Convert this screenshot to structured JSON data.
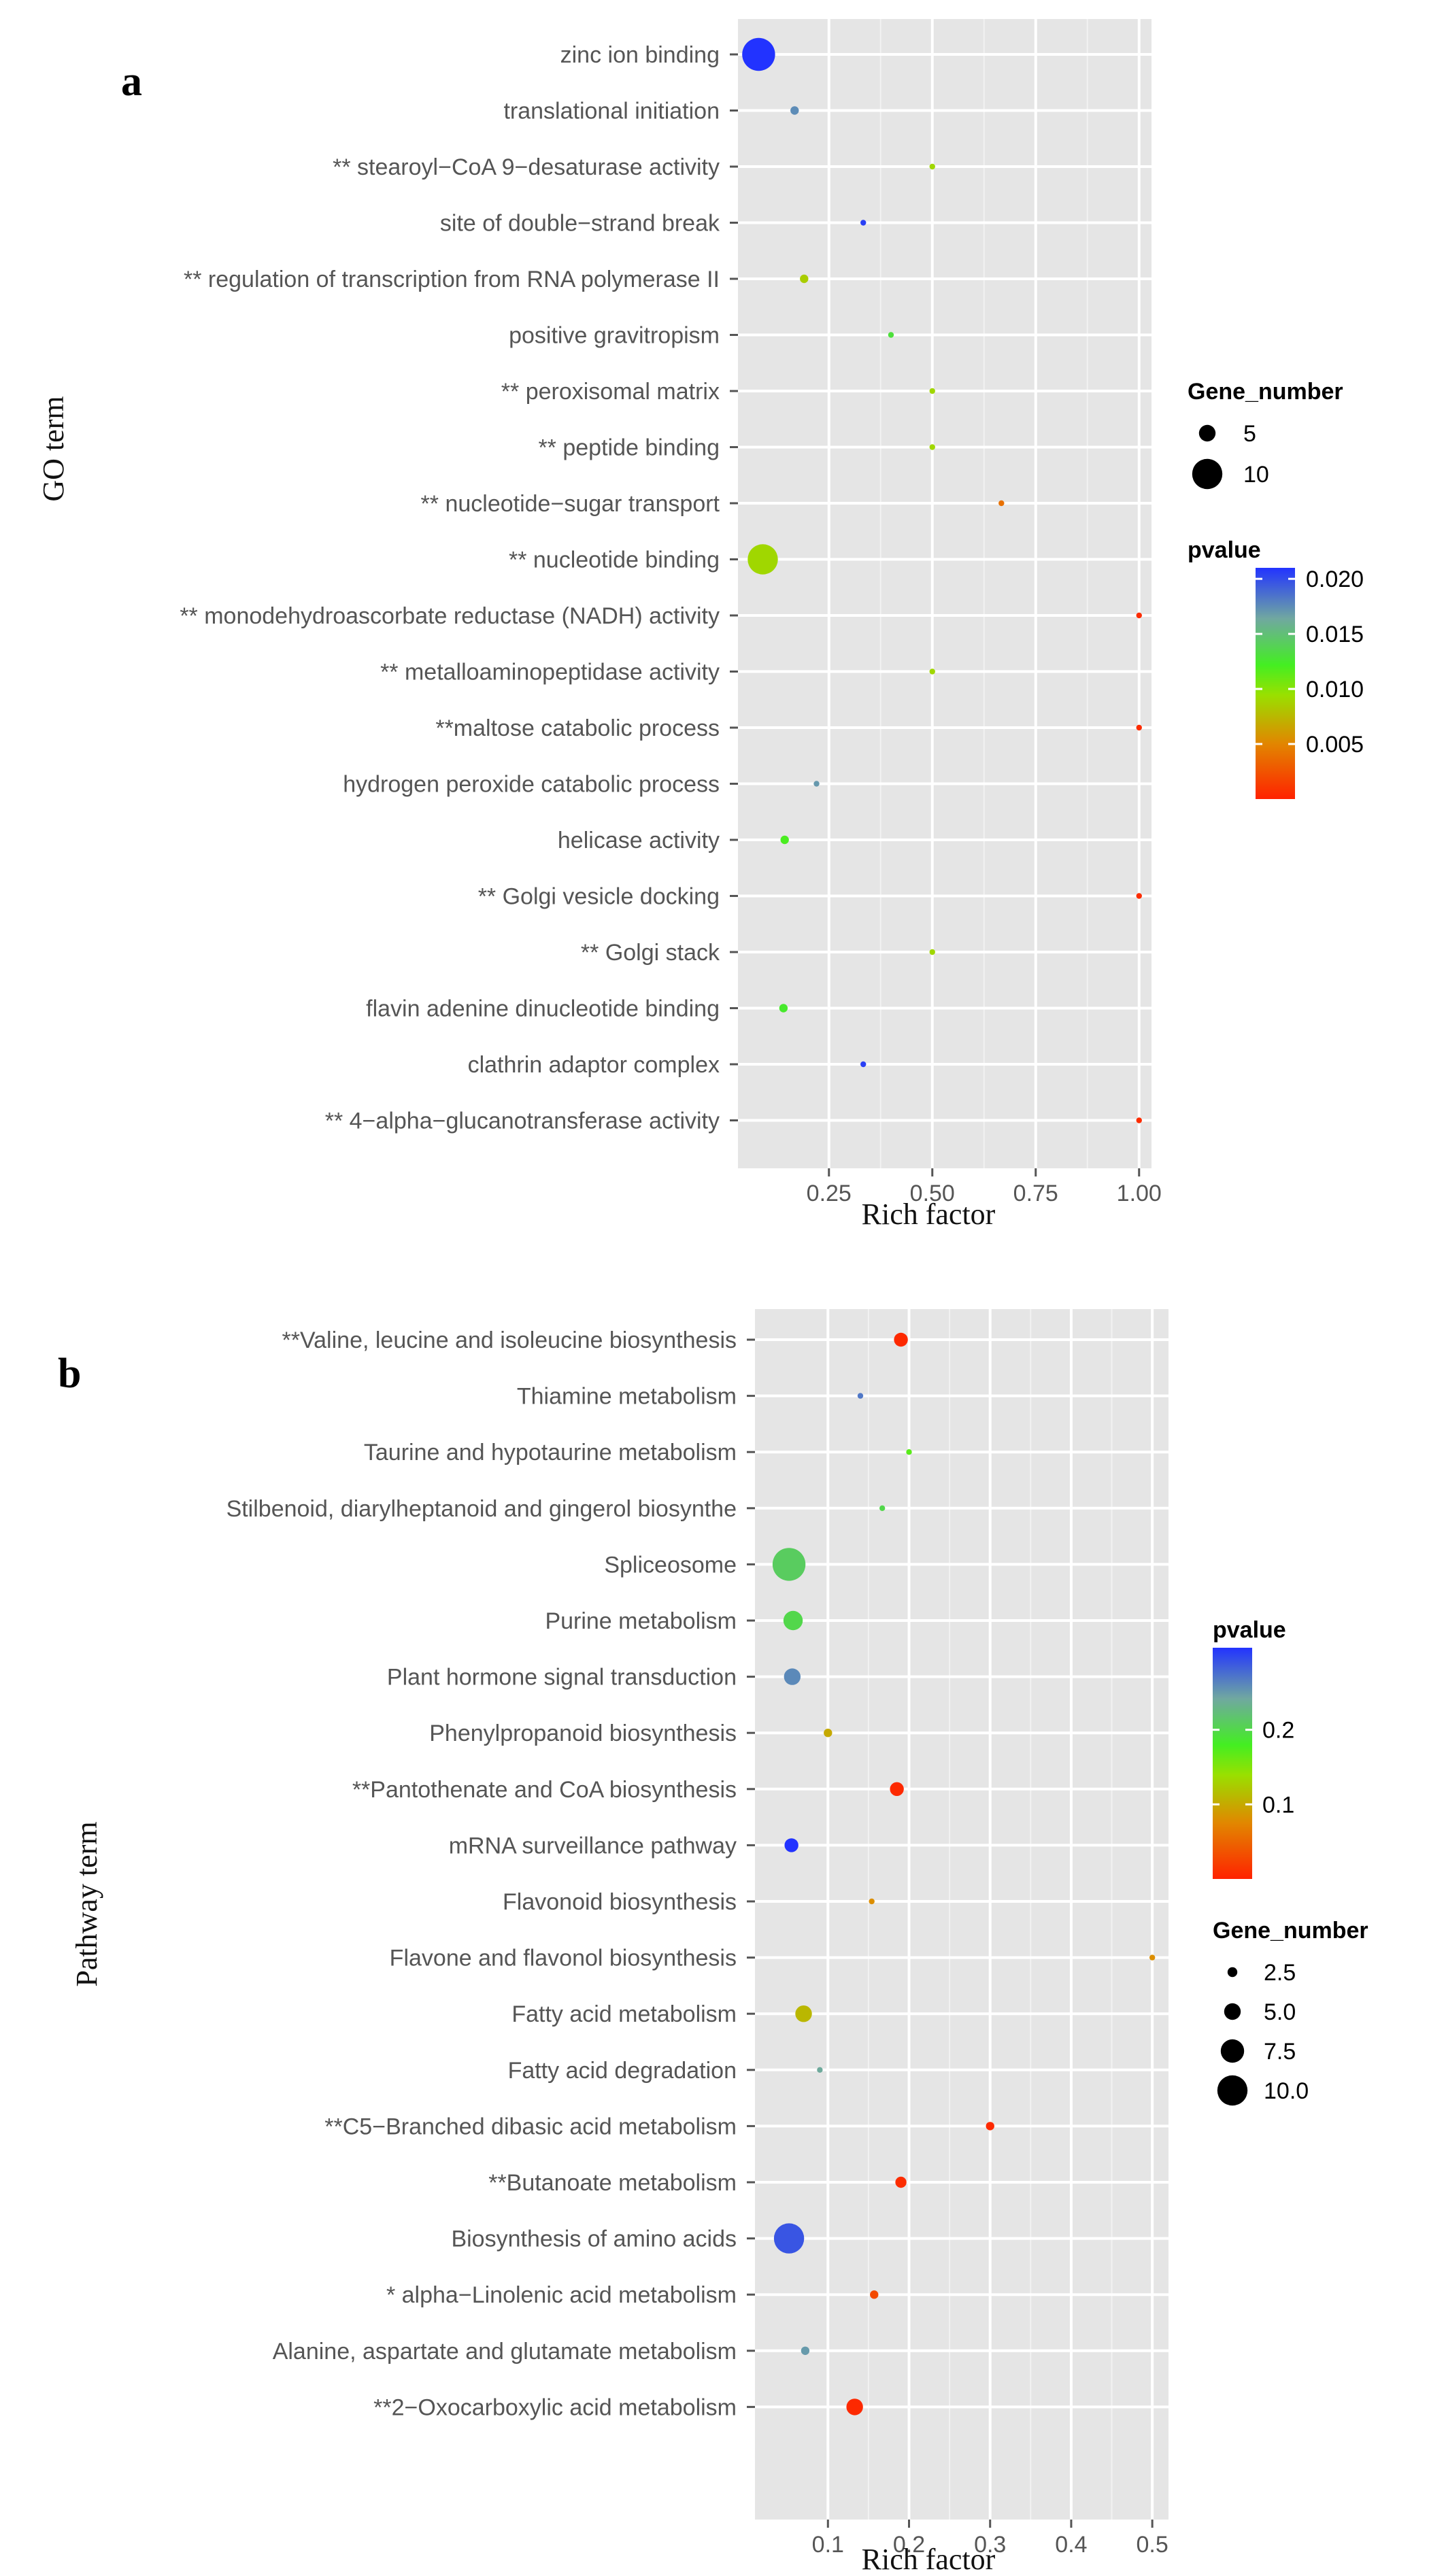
{
  "chart_data": [
    {
      "type": "scatter",
      "panel_label": "a",
      "xlabel": "Rich factor",
      "ylabel": "GO term",
      "xlim": [
        0.03,
        1.03
      ],
      "xticks": [
        0.25,
        0.5,
        0.75,
        1.0
      ],
      "xtick_labels": [
        "0.25",
        "0.50",
        "0.75",
        "1.00"
      ],
      "grid": true,
      "size_legend": {
        "title": "Gene_number",
        "entries": [
          {
            "label": "5",
            "value": 5
          },
          {
            "label": "10",
            "value": 10
          }
        ]
      },
      "color_legend": {
        "title": "pvalue",
        "min": 0.0,
        "max": 0.021,
        "ticks": [
          0.02,
          0.015,
          0.01,
          0.005
        ],
        "tick_labels": [
          "0.020",
          "0.015",
          "0.010",
          "0.005"
        ]
      },
      "points": [
        {
          "term": "zinc ion binding",
          "rich_factor": 0.08,
          "gene_number": 11,
          "pvalue": 0.021
        },
        {
          "term": "translational initiation",
          "rich_factor": 0.167,
          "gene_number": 2,
          "pvalue": 0.0175
        },
        {
          "term": "** stearoyl−CoA 9−desaturase activity",
          "rich_factor": 0.5,
          "gene_number": 1,
          "pvalue": 0.009
        },
        {
          "term": "site of double−strand break",
          "rich_factor": 0.333,
          "gene_number": 1,
          "pvalue": 0.0205
        },
        {
          "term": "** regulation of transcription from RNA polymerase II",
          "rich_factor": 0.19,
          "gene_number": 2,
          "pvalue": 0.0085
        },
        {
          "term": "positive gravitropism",
          "rich_factor": 0.4,
          "gene_number": 1,
          "pvalue": 0.013
        },
        {
          "term": "** peroxisomal matrix",
          "rich_factor": 0.5,
          "gene_number": 1,
          "pvalue": 0.009
        },
        {
          "term": "** peptide binding",
          "rich_factor": 0.5,
          "gene_number": 1,
          "pvalue": 0.009
        },
        {
          "term": "** nucleotide−sugar transport",
          "rich_factor": 0.667,
          "gene_number": 1,
          "pvalue": 0.004
        },
        {
          "term": "** nucleotide binding",
          "rich_factor": 0.09,
          "gene_number": 10,
          "pvalue": 0.009
        },
        {
          "term": "** monodehydroascorbate reductase (NADH) activity",
          "rich_factor": 1.0,
          "gene_number": 1,
          "pvalue": 0.0005
        },
        {
          "term": "** metalloaminopeptidase activity",
          "rich_factor": 0.5,
          "gene_number": 1,
          "pvalue": 0.009
        },
        {
          "term": "**maltose catabolic process",
          "rich_factor": 1.0,
          "gene_number": 1,
          "pvalue": 0.0005
        },
        {
          "term": "hydrogen peroxide catabolic process",
          "rich_factor": 0.22,
          "gene_number": 1,
          "pvalue": 0.017
        },
        {
          "term": "helicase activity",
          "rich_factor": 0.143,
          "gene_number": 2,
          "pvalue": 0.012
        },
        {
          "term": "** Golgi vesicle docking",
          "rich_factor": 1.0,
          "gene_number": 1,
          "pvalue": 0.0005
        },
        {
          "term": "** Golgi stack",
          "rich_factor": 0.5,
          "gene_number": 1,
          "pvalue": 0.009
        },
        {
          "term": "flavin adenine dinucleotide binding",
          "rich_factor": 0.14,
          "gene_number": 2,
          "pvalue": 0.0125
        },
        {
          "term": "clathrin adaptor complex",
          "rich_factor": 0.333,
          "gene_number": 1,
          "pvalue": 0.0205
        },
        {
          "term": "** 4−alpha−glucanotransferase activity",
          "rich_factor": 1.0,
          "gene_number": 1,
          "pvalue": 0.0005
        }
      ]
    },
    {
      "type": "scatter",
      "panel_label": "b",
      "xlabel": "Rich factor",
      "ylabel": "Pathway term",
      "xlim": [
        0.01,
        0.52
      ],
      "xticks": [
        0.1,
        0.2,
        0.3,
        0.4,
        0.5
      ],
      "xtick_labels": [
        "0.1",
        "0.2",
        "0.3",
        "0.4",
        "0.5"
      ],
      "grid": true,
      "size_legend": {
        "title": "Gene_number",
        "entries": [
          {
            "label": "2.5",
            "value": 2.5
          },
          {
            "label": "5.0",
            "value": 5.0
          },
          {
            "label": "7.5",
            "value": 7.5
          },
          {
            "label": "10.0",
            "value": 10.0
          }
        ]
      },
      "color_legend": {
        "title": "pvalue",
        "min": 0.0,
        "max": 0.31,
        "ticks": [
          0.2,
          0.1
        ],
        "tick_labels": [
          "0.2",
          "0.1"
        ]
      },
      "points": [
        {
          "term": "**Valine, leucine and isoleucine biosynthesis",
          "rich_factor": 0.19,
          "gene_number": 4,
          "pvalue": 0.005
        },
        {
          "term": "Thiamine metabolism",
          "rich_factor": 0.14,
          "gene_number": 1,
          "pvalue": 0.27
        },
        {
          "term": "Taurine and hypotaurine metabolism",
          "rich_factor": 0.2,
          "gene_number": 1,
          "pvalue": 0.17
        },
        {
          "term": "Stilbenoid, diarylheptanoid and gingerol biosynthe",
          "rich_factor": 0.167,
          "gene_number": 1,
          "pvalue": 0.2
        },
        {
          "term": "Spliceosome",
          "rich_factor": 0.052,
          "gene_number": 11,
          "pvalue": 0.21
        },
        {
          "term": "Purine metabolism",
          "rich_factor": 0.057,
          "gene_number": 6,
          "pvalue": 0.2
        },
        {
          "term": "Plant hormone signal transduction",
          "rich_factor": 0.056,
          "gene_number": 5,
          "pvalue": 0.26
        },
        {
          "term": "Phenylpropanoid biosynthesis",
          "rich_factor": 0.1,
          "gene_number": 2,
          "pvalue": 0.1
        },
        {
          "term": "**Pantothenate and CoA biosynthesis",
          "rich_factor": 0.185,
          "gene_number": 4,
          "pvalue": 0.005
        },
        {
          "term": "mRNA surveillance pathway",
          "rich_factor": 0.055,
          "gene_number": 4,
          "pvalue": 0.31
        },
        {
          "term": "Flavonoid biosynthesis",
          "rich_factor": 0.154,
          "gene_number": 1,
          "pvalue": 0.08
        },
        {
          "term": "Flavone and flavonol biosynthesis",
          "rich_factor": 0.5,
          "gene_number": 1,
          "pvalue": 0.08
        },
        {
          "term": "Fatty acid metabolism",
          "rich_factor": 0.07,
          "gene_number": 5,
          "pvalue": 0.11
        },
        {
          "term": "Fatty acid degradation",
          "rich_factor": 0.09,
          "gene_number": 1,
          "pvalue": 0.24
        },
        {
          "term": "**C5−Branched dibasic acid metabolism",
          "rich_factor": 0.3,
          "gene_number": 2,
          "pvalue": 0.005
        },
        {
          "term": "**Butanoate metabolism",
          "rich_factor": 0.19,
          "gene_number": 3,
          "pvalue": 0.008
        },
        {
          "term": "Biosynthesis of amino acids",
          "rich_factor": 0.052,
          "gene_number": 10,
          "pvalue": 0.29
        },
        {
          "term": "* alpha−Linolenic acid metabolism",
          "rich_factor": 0.157,
          "gene_number": 2,
          "pvalue": 0.03
        },
        {
          "term": "Alanine, aspartate and glutamate metabolism",
          "rich_factor": 0.072,
          "gene_number": 2,
          "pvalue": 0.25
        },
        {
          "term": "**2−Oxocarboxylic acid metabolism",
          "rich_factor": 0.133,
          "gene_number": 5,
          "pvalue": 0.005
        }
      ]
    }
  ]
}
